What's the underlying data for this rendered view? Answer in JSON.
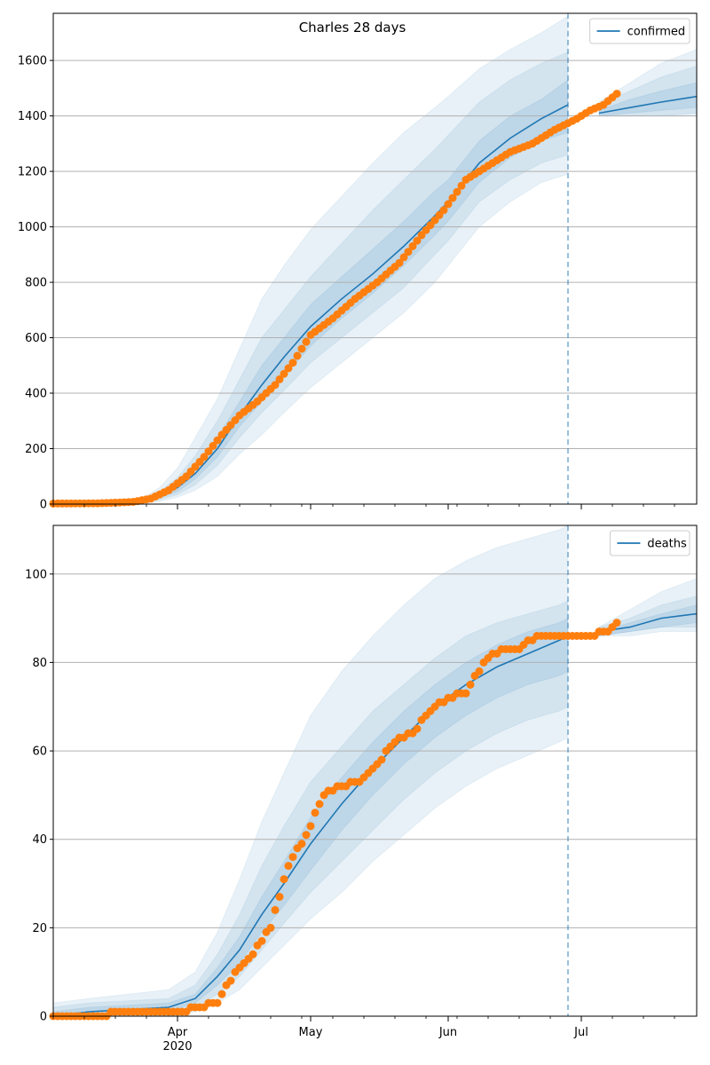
{
  "figure_title": "Charles 28 days",
  "colors": {
    "model_line": "#1f77b4",
    "observed_points": "#ff7f0e",
    "band": "#1f77b4",
    "divider": "#1f77b4",
    "grid": "#b0b0b0"
  },
  "x_axis": {
    "ticks": [
      {
        "date": "2020-04-01",
        "label": "Apr",
        "sublabel": "2020"
      },
      {
        "date": "2020-05-01",
        "label": "May",
        "sublabel": ""
      },
      {
        "date": "2020-06-01",
        "label": "Jun",
        "sublabel": ""
      },
      {
        "date": "2020-07-01",
        "label": "Jul",
        "sublabel": ""
      }
    ]
  },
  "chart_data": [
    {
      "type": "line",
      "title": "Charles 28 days",
      "legend": "confirmed",
      "legend_position": "top-right",
      "grid": "horizontal",
      "xlim": [
        "2020-03-04",
        "2020-07-27"
      ],
      "ylim": [
        0,
        1770
      ],
      "yticks": [
        0,
        200,
        400,
        600,
        800,
        1000,
        1200,
        1400,
        1600
      ],
      "forecast_start": "2020-06-28",
      "model": {
        "dates": [
          "2020-03-04",
          "2020-03-20",
          "2020-03-25",
          "2020-03-28",
          "2020-04-01",
          "2020-04-05",
          "2020-04-10",
          "2020-04-15",
          "2020-04-20",
          "2020-04-25",
          "2020-05-01",
          "2020-05-08",
          "2020-05-15",
          "2020-05-22",
          "2020-05-29",
          "2020-06-01",
          "2020-06-08",
          "2020-06-15",
          "2020-06-22",
          "2020-06-28",
          "2020-07-05",
          "2020-07-12",
          "2020-07-19",
          "2020-07-27"
        ],
        "median": [
          0,
          5,
          15,
          30,
          60,
          110,
          200,
          320,
          430,
          530,
          640,
          740,
          830,
          930,
          1040,
          1090,
          1230,
          1320,
          1390,
          1440,
          1410,
          1430,
          1450,
          1470
        ],
        "bands": [
          {
            "lower": [
              0,
              1,
              4,
              10,
              25,
              50,
              100,
              180,
              250,
              330,
              420,
              510,
              600,
              690,
              800,
              860,
              1000,
              1090,
              1160,
              1190,
              1400,
              1400,
              1400,
              1400
            ],
            "upper": [
              0,
              10,
              30,
              60,
              130,
              240,
              380,
              560,
              740,
              860,
              990,
              1110,
              1230,
              1340,
              1430,
              1470,
              1570,
              1640,
              1700,
              1760,
              1450,
              1520,
              1590,
              1640
            ]
          },
          {
            "lower": [
              0,
              2,
              7,
              16,
              35,
              70,
              140,
              240,
              330,
              410,
              510,
              600,
              690,
              780,
              900,
              950,
              1090,
              1170,
              1230,
              1260,
              1400,
              1400,
              1400,
              1410
            ],
            "upper": [
              0,
              8,
              22,
              45,
              95,
              175,
              300,
              450,
              600,
              700,
              820,
              940,
              1060,
              1170,
              1280,
              1330,
              1450,
              1530,
              1590,
              1630,
              1440,
              1490,
              1540,
              1580
            ]
          },
          {
            "lower": [
              0,
              3,
              10,
              22,
              45,
              90,
              170,
              280,
              370,
              460,
              570,
              670,
              760,
              860,
              970,
              1020,
              1160,
              1250,
              1310,
              1340,
              1400,
              1410,
              1420,
              1430
            ],
            "upper": [
              0,
              6,
              18,
              36,
              75,
              130,
              240,
              370,
              500,
              600,
              720,
              820,
              920,
              1020,
              1130,
              1170,
              1310,
              1400,
              1460,
              1530,
              1420,
              1460,
              1490,
              1520
            ]
          }
        ]
      },
      "observed": {
        "dates": [
          "2020-03-04",
          "2020-03-14",
          "2020-03-18",
          "2020-03-22",
          "2020-03-26",
          "2020-03-30",
          "2020-04-03",
          "2020-04-07",
          "2020-04-11",
          "2020-04-15",
          "2020-04-19",
          "2020-04-23",
          "2020-04-27",
          "2020-05-01",
          "2020-05-06",
          "2020-05-11",
          "2020-05-16",
          "2020-05-21",
          "2020-05-26",
          "2020-05-31",
          "2020-06-05",
          "2020-06-10",
          "2020-06-15",
          "2020-06-20",
          "2020-06-25",
          "2020-06-30",
          "2020-07-03",
          "2020-07-06",
          "2020-07-09"
        ],
        "values": [
          2,
          3,
          5,
          8,
          20,
          50,
          100,
          170,
          250,
          320,
          370,
          430,
          510,
          610,
          670,
          740,
          800,
          870,
          970,
          1060,
          1170,
          1220,
          1270,
          1300,
          1350,
          1390,
          1420,
          1440,
          1480
        ]
      }
    },
    {
      "type": "line",
      "legend": "deaths",
      "legend_position": "top-right",
      "grid": "horizontal",
      "xlim": [
        "2020-03-04",
        "2020-07-27"
      ],
      "ylim": [
        0,
        111
      ],
      "yticks": [
        0,
        20,
        40,
        60,
        80,
        100
      ],
      "forecast_start": "2020-06-28",
      "model": {
        "dates": [
          "2020-03-04",
          "2020-03-12",
          "2020-03-30",
          "2020-04-05",
          "2020-04-10",
          "2020-04-15",
          "2020-04-20",
          "2020-04-25",
          "2020-05-01",
          "2020-05-08",
          "2020-05-15",
          "2020-05-22",
          "2020-05-29",
          "2020-06-05",
          "2020-06-12",
          "2020-06-19",
          "2020-06-26",
          "2020-06-28",
          "2020-07-05",
          "2020-07-12",
          "2020-07-19",
          "2020-07-27"
        ],
        "median": [
          0,
          1,
          2,
          4,
          9,
          15,
          23,
          30,
          39,
          48,
          56,
          63,
          70,
          75,
          79,
          82,
          85,
          86,
          87,
          88,
          90,
          91
        ],
        "bands": [
          {
            "lower": [
              0,
              0,
              0,
              1,
              3,
              6,
              11,
              16,
              22,
              28,
              35,
              41,
              47,
              52,
              56,
              59,
              62,
              63,
              86,
              86,
              87,
              87
            ],
            "upper": [
              3,
              4,
              6,
              10,
              19,
              31,
              44,
              55,
              68,
              78,
              86,
              93,
              99,
              103,
              106,
              108,
              110,
              111,
              88,
              92,
              96,
              99
            ]
          },
          {
            "lower": [
              0,
              0,
              1,
              2,
              5,
              9,
              15,
              21,
              28,
              35,
              42,
              49,
              55,
              60,
              64,
              67,
              69,
              70,
              86,
              87,
              88,
              88
            ],
            "upper": [
              2,
              3,
              4,
              7,
              14,
              23,
              34,
              43,
              53,
              61,
              69,
              75,
              81,
              86,
              89,
              91,
              93,
              94,
              88,
              90,
              93,
              95
            ]
          },
          {
            "lower": [
              0,
              0,
              1,
              3,
              7,
              12,
              19,
              25,
              33,
              42,
              50,
              57,
              63,
              68,
              72,
              75,
              77,
              78,
              86,
              87,
              88,
              89
            ],
            "upper": [
              1,
              2,
              3,
              5,
              11,
              18,
              27,
              35,
              45,
              54,
              62,
              69,
              75,
              80,
              84,
              87,
              89,
              90,
              87,
              89,
              91,
              93
            ]
          }
        ]
      },
      "observed": {
        "dates": [
          "2020-03-04",
          "2020-03-29",
          "2020-04-02",
          "2020-04-06",
          "2020-04-10",
          "2020-04-14",
          "2020-04-18",
          "2020-04-22",
          "2020-04-26",
          "2020-04-30",
          "2020-05-04",
          "2020-05-08",
          "2020-05-12",
          "2020-05-16",
          "2020-05-20",
          "2020-05-24",
          "2020-05-28",
          "2020-06-01",
          "2020-06-05",
          "2020-06-09",
          "2020-06-13",
          "2020-06-17",
          "2020-06-21",
          "2020-06-25",
          "2020-06-29",
          "2020-07-03",
          "2020-07-07",
          "2020-07-09"
        ],
        "values": [
          0,
          1,
          1,
          2,
          3,
          10,
          14,
          20,
          34,
          41,
          50,
          52,
          53,
          57,
          62,
          64,
          69,
          72,
          73,
          80,
          83,
          83,
          86,
          86,
          86,
          86,
          87,
          89
        ]
      }
    }
  ]
}
